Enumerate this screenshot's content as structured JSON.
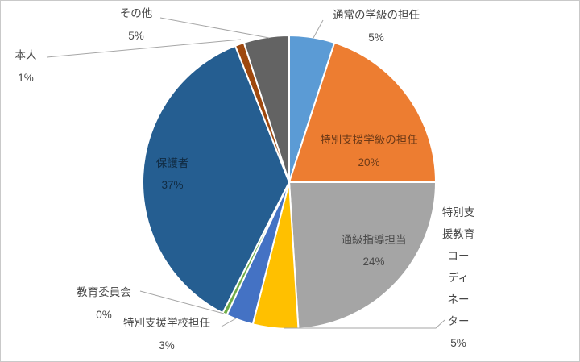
{
  "chart_data": {
    "type": "pie",
    "title": "",
    "legend_position": "none",
    "start_angle_deg": 0,
    "direction": "clockwise",
    "slices": [
      {
        "label": "通常の学級の担任",
        "value": 5,
        "pct_label": "5%",
        "color": "#5B9BD5",
        "label_position": "outside"
      },
      {
        "label": "特別支援学級の担任",
        "value": 20,
        "pct_label": "20%",
        "color": "#ED7D31",
        "label_position": "inside"
      },
      {
        "label": "通級指導担当",
        "value": 24,
        "pct_label": "24%",
        "color": "#A5A5A5",
        "label_position": "inside"
      },
      {
        "label": "特別支援教育コーディネーター",
        "label_lines": [
          "特別支",
          "援教育",
          "コー",
          "ディ",
          "ネー",
          "ター"
        ],
        "value": 5,
        "pct_label": "5%",
        "color": "#FFC000",
        "label_position": "outside"
      },
      {
        "label": "特別支援学校担任",
        "value": 3,
        "pct_label": "3%",
        "color": "#4472C4",
        "label_position": "outside"
      },
      {
        "label": "教育委員会",
        "value": 0,
        "pct_label": "0%",
        "color": "#70AD47",
        "label_position": "outside"
      },
      {
        "label": "保護者",
        "value": 37,
        "pct_label": "37%",
        "color": "#255E91",
        "label_position": "inside"
      },
      {
        "label": "本人",
        "value": 1,
        "pct_label": "1%",
        "color": "#9E480E",
        "label_position": "outside"
      },
      {
        "label": "その他",
        "value": 5,
        "pct_label": "5%",
        "color": "#636363",
        "label_position": "outside"
      }
    ],
    "colors": {
      "leader_line": "#a6a6a6",
      "outside_label_text": "#474747",
      "chart_border": "#c9c9c9",
      "slice_border": "#ffffff"
    }
  }
}
